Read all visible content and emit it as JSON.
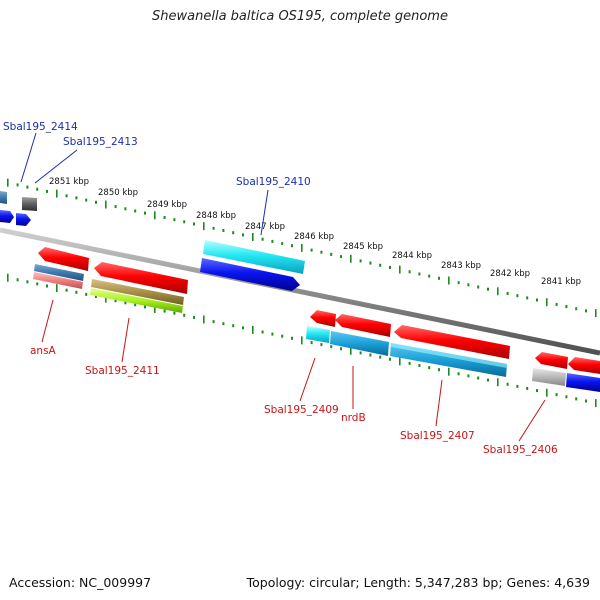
{
  "title": "Shewanella baltica OS195, complete genome",
  "footer": {
    "accession": "Accession: NC_009997",
    "summary": "Topology: circular; Length: 5,347,283 bp; Genes: 4,639"
  },
  "colors": {
    "backbone": "#8c8c8c",
    "tick": "#1f8a1f",
    "label_blue": "#1a2fb0",
    "label_red": "#c81414"
  },
  "scale": {
    "unit": "kbp",
    "labels": [
      "2851 kbp",
      "2850 kbp",
      "2849 kbp",
      "2848 kbp",
      "2847 kbp",
      "2846 kbp",
      "2845 kbp",
      "2844 kbp",
      "2843 kbp",
      "2842 kbp",
      "2841 kbp"
    ]
  },
  "gene_labels": {
    "top": [
      "Sbal195_2414",
      "Sbal195_2413",
      "Sbal195_2410"
    ],
    "bottom": [
      "ansA",
      "Sbal195_2411",
      "Sbal195_2409",
      "nrdB",
      "Sbal195_2407",
      "Sbal195_2406"
    ]
  }
}
